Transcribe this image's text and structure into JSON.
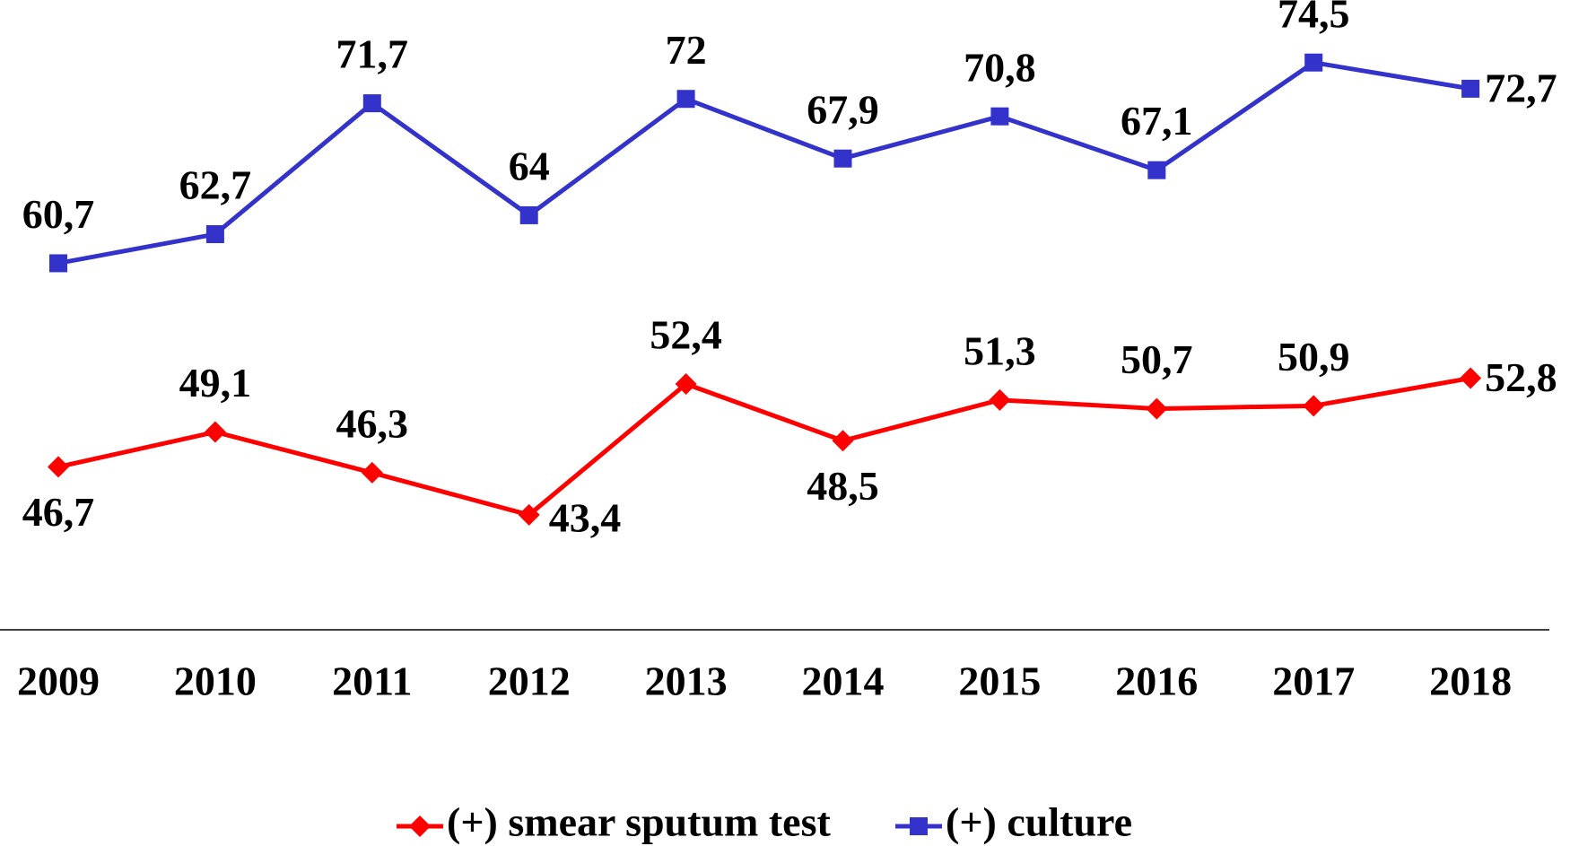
{
  "chart_data": {
    "type": "line",
    "categories": [
      "2009",
      "2010",
      "2011",
      "2012",
      "2013",
      "2014",
      "2015",
      "2016",
      "2017",
      "2018"
    ],
    "series": [
      {
        "name": "(+) smear sputum test",
        "color": "#ff0000",
        "marker": "diamond",
        "values": [
          46.7,
          49.1,
          46.3,
          43.4,
          52.4,
          48.5,
          51.3,
          50.7,
          50.9,
          52.8
        ],
        "value_labels": [
          "46,7",
          "49,1",
          "46,3",
          "43,4",
          "52,4",
          "48,5",
          "51,3",
          "50,7",
          "50,9",
          "52,8"
        ]
      },
      {
        "name": "(+) culture",
        "color": "#3333cc",
        "marker": "square",
        "values": [
          60.7,
          62.7,
          71.7,
          64,
          72,
          67.9,
          70.8,
          67.1,
          74.5,
          72.7
        ],
        "value_labels": [
          "60,7",
          "62,7",
          "71,7",
          "64",
          "72",
          "67,9",
          "70,8",
          "67,1",
          "74,5",
          "72,7"
        ]
      }
    ],
    "ylim": [
      35.5,
      78.8
    ],
    "legend": "bottom"
  }
}
